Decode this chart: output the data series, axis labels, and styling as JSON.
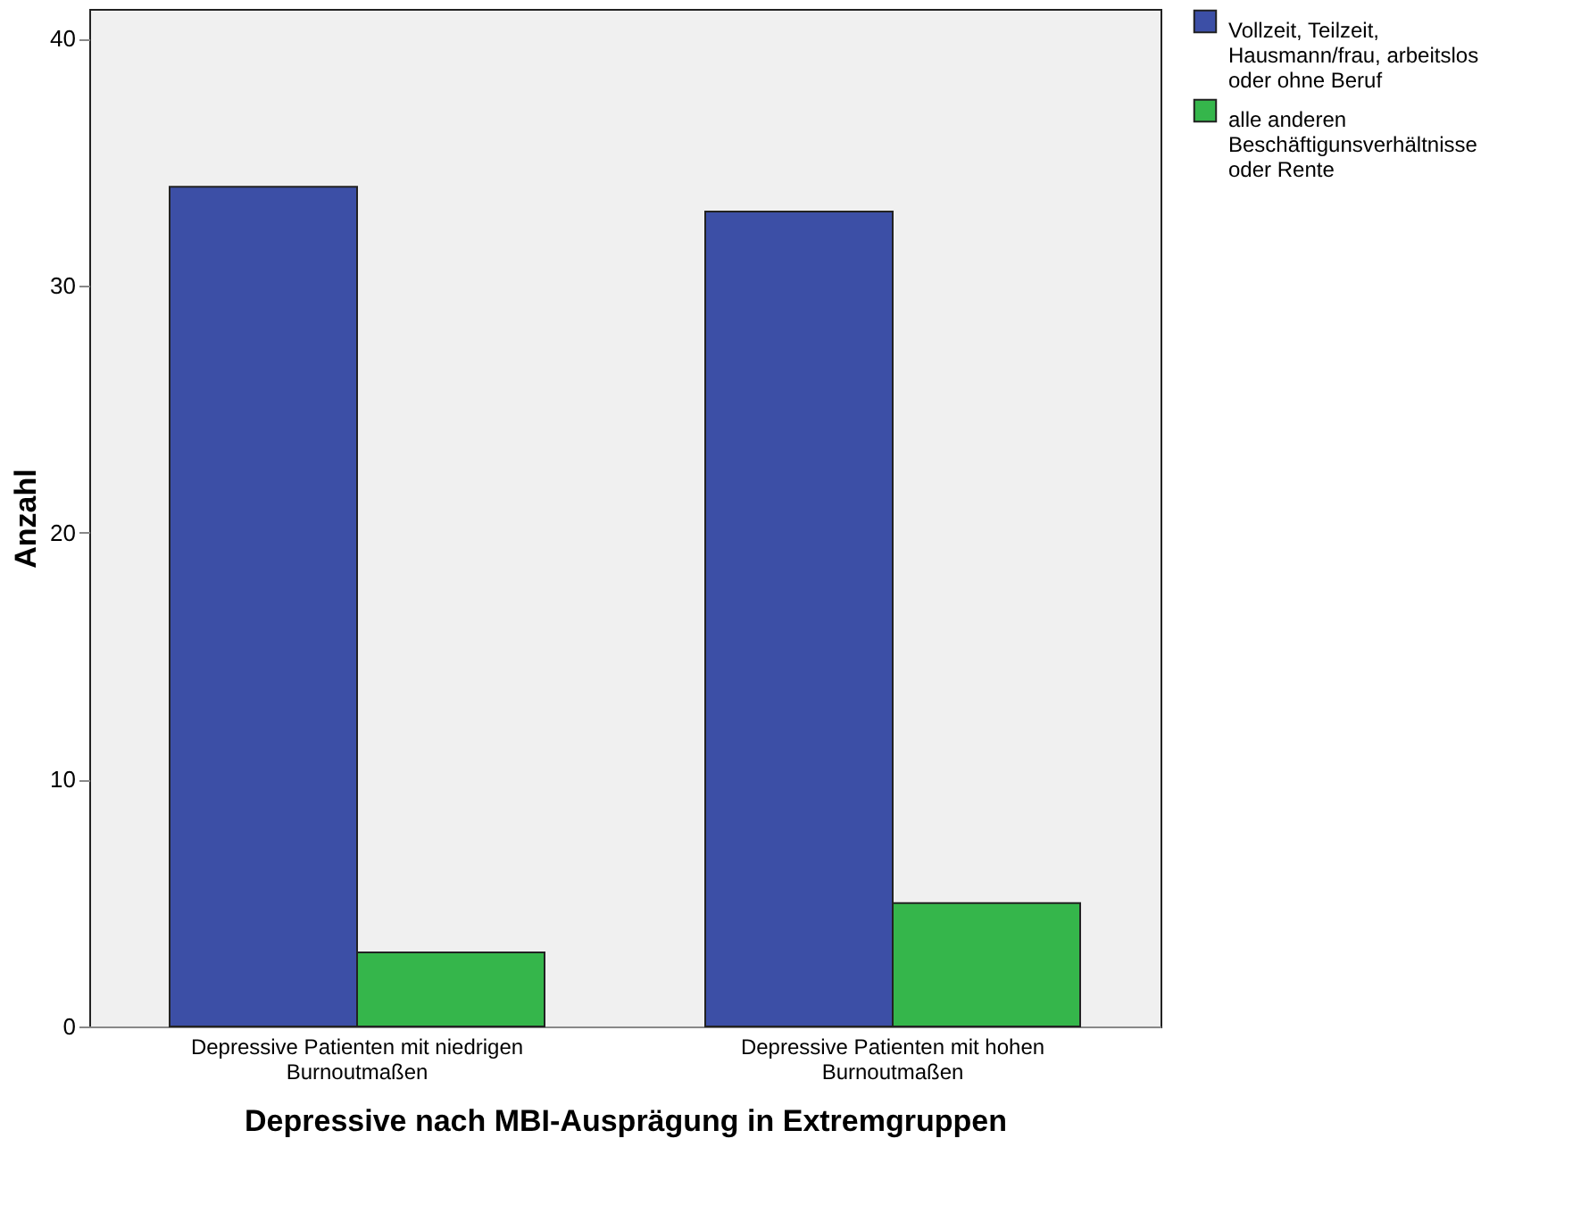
{
  "chart_data": {
    "type": "bar",
    "xlabel": "Depressive nach MBI-Ausprägung in Extremgruppen",
    "ylabel": "Anzahl",
    "categories": [
      "Depressive Patienten mit niedrigen Burnoutmaßen",
      "Depressive Patienten mit hohen Burnoutmaßen"
    ],
    "series": [
      {
        "name": "Vollzeit, Teilzeit, Hausmann/frau, arbeitslos oder ohne Beruf",
        "color": "#3c4fa6",
        "values": [
          34,
          33
        ]
      },
      {
        "name": "alle anderen Beschäftigunsverhältnisse oder Rente",
        "color": "#35b64b",
        "values": [
          3,
          5
        ]
      }
    ],
    "ylim": [
      0,
      41.2
    ],
    "yticks": [
      0,
      10,
      20,
      30,
      40
    ],
    "grid": false,
    "legend": "top right"
  }
}
